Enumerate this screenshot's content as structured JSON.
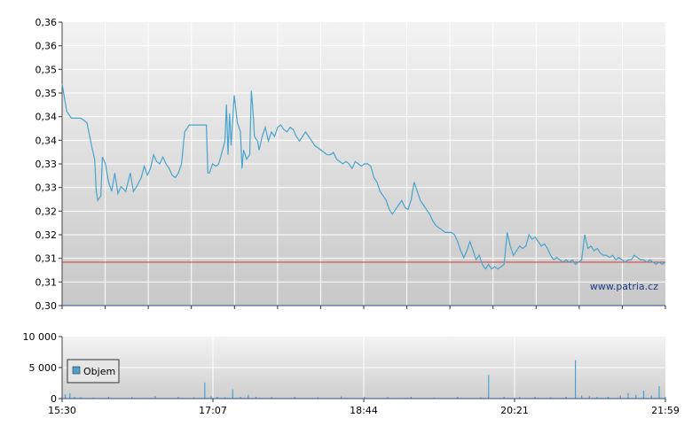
{
  "chart_data": [
    {
      "type": "line",
      "y_tick_labels": [
        "0,36",
        "0,36",
        "0,35",
        "0,35",
        "0,34",
        "0,34",
        "0,33",
        "0,33",
        "0,32",
        "0,32",
        "0,31",
        "0,31",
        "0,30"
      ],
      "ylim": [
        0.3,
        0.362
      ],
      "reference_line": {
        "value": 0.3095,
        "color": "#d23a3a"
      },
      "line_color": "#4aa3cc",
      "grid": true,
      "watermark": "www.patria.cz",
      "series": [
        {
          "points": [
            [
              0,
              0.3485
            ],
            [
              3,
              0.3425
            ],
            [
              6,
              0.341
            ],
            [
              12,
              0.341
            ],
            [
              16,
              0.34
            ],
            [
              19,
              0.335
            ],
            [
              21,
              0.332
            ],
            [
              22,
              0.325
            ],
            [
              23,
              0.323
            ],
            [
              25,
              0.324
            ],
            [
              26,
              0.3325
            ],
            [
              28,
              0.331
            ],
            [
              30,
              0.327
            ],
            [
              32,
              0.325
            ],
            [
              34,
              0.329
            ],
            [
              36,
              0.3245
            ],
            [
              38,
              0.326
            ],
            [
              41,
              0.325
            ],
            [
              44,
              0.329
            ],
            [
              46,
              0.325
            ],
            [
              48,
              0.326
            ],
            [
              51,
              0.328
            ],
            [
              53,
              0.3305
            ],
            [
              55,
              0.3285
            ],
            [
              57,
              0.33
            ],
            [
              59,
              0.333
            ],
            [
              61,
              0.3315
            ],
            [
              63,
              0.331
            ],
            [
              65,
              0.3325
            ],
            [
              67,
              0.331
            ],
            [
              69,
              0.33
            ],
            [
              71,
              0.3285
            ],
            [
              73,
              0.328
            ],
            [
              75,
              0.329
            ],
            [
              77,
              0.331
            ],
            [
              79,
              0.338
            ],
            [
              82,
              0.3395
            ],
            [
              88,
              0.3395
            ],
            [
              93,
              0.3395
            ],
            [
              94,
              0.329
            ],
            [
              95,
              0.329
            ],
            [
              97,
              0.331
            ],
            [
              99,
              0.3305
            ],
            [
              101,
              0.331
            ],
            [
              103,
              0.3335
            ],
            [
              105,
              0.336
            ],
            [
              106,
              0.344
            ],
            [
              107,
              0.333
            ],
            [
              108,
              0.342
            ],
            [
              109,
              0.335
            ],
            [
              111,
              0.346
            ],
            [
              113,
              0.34
            ],
            [
              115,
              0.338
            ],
            [
              116,
              0.33
            ],
            [
              117,
              0.334
            ],
            [
              119,
              0.332
            ],
            [
              121,
              0.333
            ],
            [
              122,
              0.347
            ],
            [
              123,
              0.343
            ],
            [
              124,
              0.337
            ],
            [
              126,
              0.336
            ],
            [
              127,
              0.334
            ],
            [
              129,
              0.337
            ],
            [
              131,
              0.339
            ],
            [
              133,
              0.336
            ],
            [
              135,
              0.338
            ],
            [
              137,
              0.337
            ],
            [
              139,
              0.339
            ],
            [
              141,
              0.3395
            ],
            [
              143,
              0.3385
            ],
            [
              145,
              0.338
            ],
            [
              147,
              0.339
            ],
            [
              149,
              0.3385
            ],
            [
              151,
              0.337
            ],
            [
              153,
              0.336
            ],
            [
              155,
              0.337
            ],
            [
              157,
              0.338
            ],
            [
              159,
              0.337
            ],
            [
              161,
              0.336
            ],
            [
              163,
              0.335
            ],
            [
              165,
              0.3345
            ],
            [
              167,
              0.334
            ],
            [
              169,
              0.3335
            ],
            [
              171,
              0.333
            ],
            [
              173,
              0.333
            ],
            [
              175,
              0.3335
            ],
            [
              177,
              0.332
            ],
            [
              179,
              0.3315
            ],
            [
              181,
              0.331
            ],
            [
              183,
              0.3315
            ],
            [
              185,
              0.331
            ],
            [
              187,
              0.33
            ],
            [
              189,
              0.3315
            ],
            [
              191,
              0.331
            ],
            [
              193,
              0.3305
            ],
            [
              195,
              0.331
            ],
            [
              197,
              0.331
            ],
            [
              199,
              0.3305
            ],
            [
              201,
              0.328
            ],
            [
              203,
              0.327
            ],
            [
              205,
              0.325
            ],
            [
              207,
              0.324
            ],
            [
              209,
              0.323
            ],
            [
              211,
              0.321
            ],
            [
              213,
              0.32
            ],
            [
              215,
              0.321
            ],
            [
              217,
              0.322
            ],
            [
              219,
              0.323
            ],
            [
              221,
              0.3215
            ],
            [
              223,
              0.321
            ],
            [
              225,
              0.323
            ],
            [
              227,
              0.327
            ],
            [
              229,
              0.325
            ],
            [
              231,
              0.323
            ],
            [
              233,
              0.322
            ],
            [
              235,
              0.321
            ],
            [
              237,
              0.32
            ],
            [
              239,
              0.3185
            ],
            [
              241,
              0.3175
            ],
            [
              243,
              0.317
            ],
            [
              245,
              0.3165
            ],
            [
              247,
              0.316
            ],
            [
              249,
              0.316
            ],
            [
              251,
              0.316
            ],
            [
              253,
              0.3155
            ],
            [
              255,
              0.314
            ],
            [
              257,
              0.312
            ],
            [
              259,
              0.3105
            ],
            [
              261,
              0.312
            ],
            [
              263,
              0.314
            ],
            [
              265,
              0.312
            ],
            [
              267,
              0.31
            ],
            [
              269,
              0.311
            ],
            [
              271,
              0.309
            ],
            [
              273,
              0.308
            ],
            [
              275,
              0.309
            ],
            [
              277,
              0.308
            ],
            [
              279,
              0.3085
            ],
            [
              281,
              0.308
            ],
            [
              283,
              0.3085
            ],
            [
              285,
              0.309
            ],
            [
              287,
              0.316
            ],
            [
              289,
              0.313
            ],
            [
              291,
              0.311
            ],
            [
              293,
              0.312
            ],
            [
              295,
              0.313
            ],
            [
              297,
              0.3125
            ],
            [
              299,
              0.313
            ],
            [
              301,
              0.3155
            ],
            [
              303,
              0.3145
            ],
            [
              305,
              0.315
            ],
            [
              307,
              0.314
            ],
            [
              309,
              0.313
            ],
            [
              311,
              0.3135
            ],
            [
              313,
              0.3125
            ],
            [
              315,
              0.311
            ],
            [
              317,
              0.31
            ],
            [
              319,
              0.3105
            ],
            [
              321,
              0.31
            ],
            [
              323,
              0.3095
            ],
            [
              325,
              0.31
            ],
            [
              327,
              0.3095
            ],
            [
              329,
              0.31
            ],
            [
              331,
              0.309
            ],
            [
              333,
              0.3095
            ],
            [
              335,
              0.31
            ],
            [
              337,
              0.3155
            ],
            [
              339,
              0.3125
            ],
            [
              341,
              0.313
            ],
            [
              343,
              0.312
            ],
            [
              345,
              0.3125
            ],
            [
              347,
              0.3115
            ],
            [
              349,
              0.311
            ],
            [
              351,
              0.311
            ],
            [
              353,
              0.3105
            ],
            [
              355,
              0.311
            ],
            [
              357,
              0.31
            ],
            [
              359,
              0.3105
            ],
            [
              361,
              0.31
            ],
            [
              363,
              0.3095
            ],
            [
              365,
              0.31
            ],
            [
              367,
              0.31
            ],
            [
              369,
              0.311
            ],
            [
              371,
              0.3105
            ],
            [
              373,
              0.31
            ],
            [
              375,
              0.31
            ],
            [
              377,
              0.3095
            ],
            [
              379,
              0.31
            ],
            [
              381,
              0.3095
            ],
            [
              383,
              0.309
            ],
            [
              385,
              0.3095
            ],
            [
              387,
              0.309
            ],
            [
              389,
              0.3095
            ]
          ]
        }
      ]
    },
    {
      "type": "bar",
      "y_tick_labels": [
        "10 000",
        "5 000",
        "0"
      ],
      "ylim": [
        0,
        10000
      ],
      "x_tick_labels": [
        "15:30",
        "17:07",
        "18:44",
        "20:21",
        "21:59"
      ],
      "bar_color": "#4aa3cc",
      "grid": true,
      "legend": {
        "label": "Objem",
        "placement": "top-left"
      },
      "series": [
        {
          "name": "Objem",
          "points": [
            [
              2,
              700
            ],
            [
              5,
              900
            ],
            [
              8,
              300
            ],
            [
              12,
              200
            ],
            [
              20,
              150
            ],
            [
              30,
              300
            ],
            [
              45,
              250
            ],
            [
              60,
              400
            ],
            [
              75,
              300
            ],
            [
              85,
              200
            ],
            [
              92,
              2600
            ],
            [
              96,
              400
            ],
            [
              100,
              300
            ],
            [
              105,
              200
            ],
            [
              110,
              1500
            ],
            [
              115,
              300
            ],
            [
              120,
              600
            ],
            [
              125,
              300
            ],
            [
              135,
              250
            ],
            [
              150,
              300
            ],
            [
              165,
              200
            ],
            [
              180,
              350
            ],
            [
              195,
              300
            ],
            [
              210,
              250
            ],
            [
              225,
              300
            ],
            [
              240,
              150
            ],
            [
              255,
              300
            ],
            [
              270,
              200
            ],
            [
              275,
              3800
            ],
            [
              285,
              300
            ],
            [
              295,
              250
            ],
            [
              305,
              300
            ],
            [
              315,
              200
            ],
            [
              325,
              300
            ],
            [
              331,
              6200
            ],
            [
              335,
              500
            ],
            [
              340,
              400
            ],
            [
              345,
              300
            ],
            [
              352,
              300
            ],
            [
              360,
              500
            ],
            [
              365,
              900
            ],
            [
              370,
              600
            ],
            [
              375,
              1300
            ],
            [
              380,
              500
            ],
            [
              385,
              2000
            ],
            [
              389,
              300
            ]
          ]
        }
      ]
    }
  ]
}
